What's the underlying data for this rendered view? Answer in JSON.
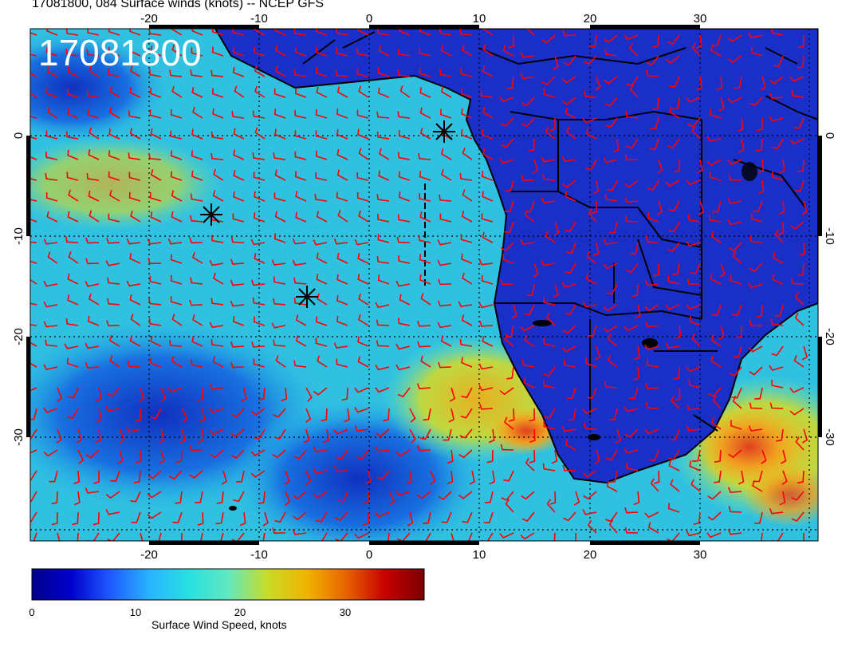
{
  "title": "17081800, 084 Surface winds (knots) -- NCEP GFS",
  "stamp": "17081800",
  "longitude_ticks": [
    "-20",
    "-10",
    "0",
    "10",
    "20",
    "30"
  ],
  "latitude_ticks": [
    "0",
    "-10",
    "-20",
    "-30"
  ],
  "colorbar": {
    "label": "Surface Wind Speed, knots",
    "ticks": [
      "0",
      "10",
      "20",
      "30"
    ],
    "min": 0,
    "max": 38,
    "stops": [
      "#00008a",
      "#0000cd",
      "#1e5aff",
      "#28b4ff",
      "#28e0e0",
      "#60e8c0",
      "#c8dc28",
      "#f0b400",
      "#e86400",
      "#c80000",
      "#7a0000"
    ]
  },
  "colors": {
    "ocean_low": "#1030c8",
    "ocean_mid": "#28b8e8",
    "land": "#1428c8",
    "high_wind": "#f07020",
    "barbs": "#ff0000",
    "coast": "#000000"
  }
}
